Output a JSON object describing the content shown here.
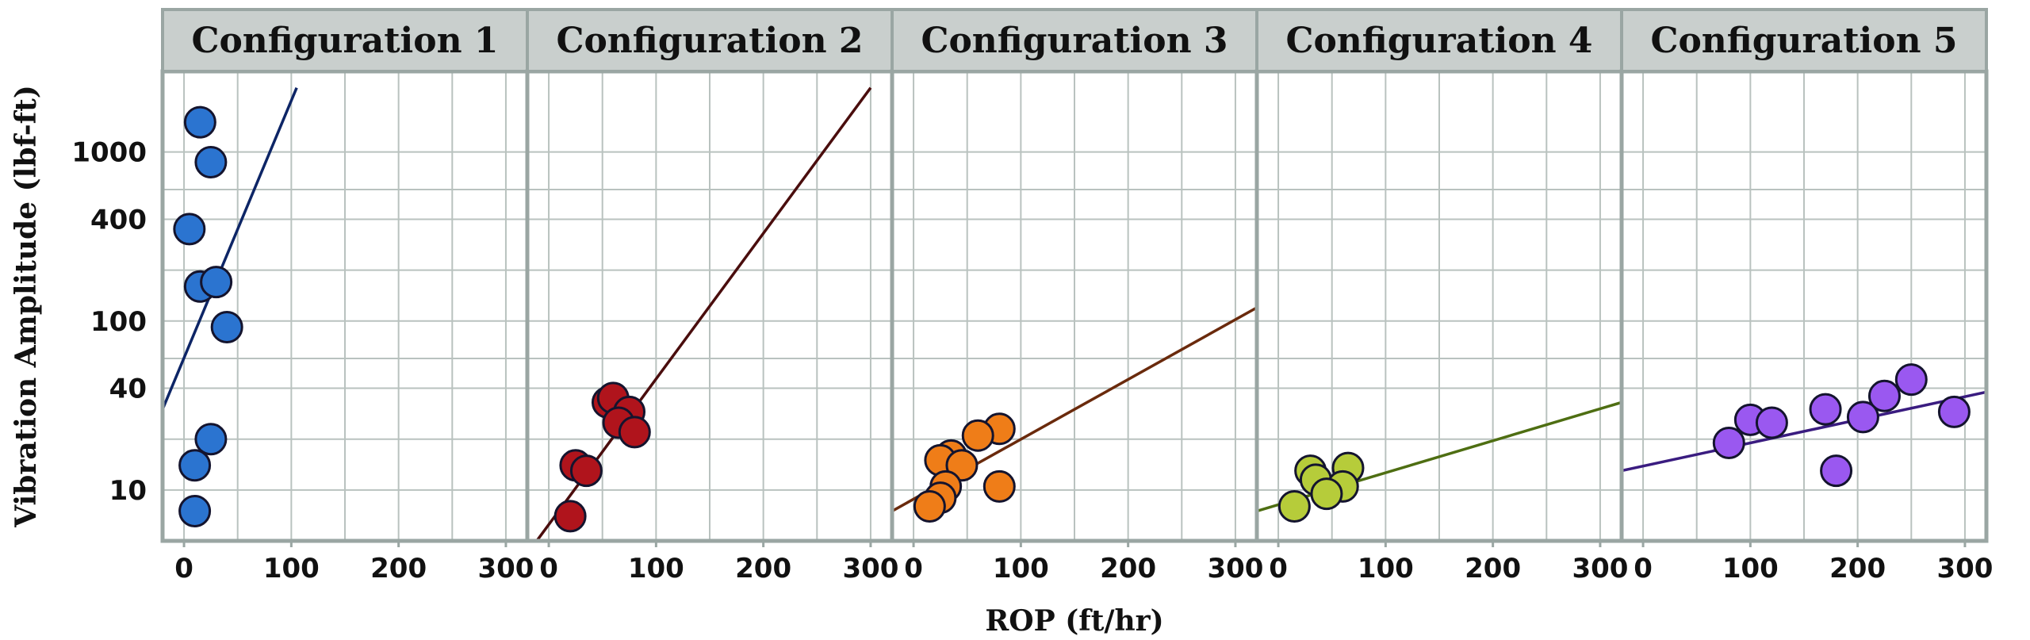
{
  "chart_data": {
    "type": "scatter",
    "faceted": true,
    "xlabel": "ROP (ft/hr)",
    "ylabel": "Vibration Amplitude (lbf-ft)",
    "y_scale": "log",
    "xlim": [
      -20,
      320
    ],
    "ylim": [
      5,
      3000
    ],
    "x_ticks": [
      0,
      100,
      200,
      300
    ],
    "x_tick_labels": [
      "0",
      "100",
      "200",
      "300"
    ],
    "y_ticks": [
      10,
      40,
      100,
      400,
      1000
    ],
    "y_tick_labels": [
      "10",
      "40",
      "100",
      "400",
      "1000"
    ],
    "y_minor_gridlines": [
      20,
      60,
      200,
      600
    ],
    "grid": true,
    "panels": [
      {
        "title": "Configuration 1",
        "color": "#2b74d0",
        "line_color": "#0d2566",
        "points": [
          [
            15,
            1500
          ],
          [
            25,
            870
          ],
          [
            5,
            350
          ],
          [
            15,
            160
          ],
          [
            30,
            170
          ],
          [
            40,
            92
          ],
          [
            25,
            20
          ],
          [
            10,
            14
          ],
          [
            10,
            7.5
          ]
        ],
        "fit_line": [
          [
            -20,
            30
          ],
          [
            105,
            2400
          ]
        ]
      },
      {
        "title": "Configuration 2",
        "color": "#b0141c",
        "line_color": "#4a0d0d",
        "points": [
          [
            55,
            33
          ],
          [
            60,
            35
          ],
          [
            75,
            29
          ],
          [
            65,
            25
          ],
          [
            80,
            22
          ],
          [
            25,
            14
          ],
          [
            35,
            13
          ],
          [
            20,
            7
          ]
        ],
        "fit_line": [
          [
            -20,
            4.2
          ],
          [
            300,
            2400
          ]
        ]
      },
      {
        "title": "Configuration 3",
        "color": "#ef7d18",
        "line_color": "#6a2a0c",
        "points": [
          [
            80,
            23
          ],
          [
            60,
            21
          ],
          [
            35,
            16
          ],
          [
            25,
            15
          ],
          [
            45,
            14
          ],
          [
            80,
            10.5
          ],
          [
            30,
            10.5
          ],
          [
            25,
            9
          ],
          [
            15,
            8
          ]
        ],
        "fit_line": [
          [
            -20,
            7.5
          ],
          [
            320,
            120
          ]
        ]
      },
      {
        "title": "Configuration 4",
        "color": "#b6cc3a",
        "line_color": "#4e6e12",
        "points": [
          [
            30,
            13
          ],
          [
            65,
            13.5
          ],
          [
            35,
            11.5
          ],
          [
            60,
            10.5
          ],
          [
            45,
            9.5
          ],
          [
            15,
            8
          ]
        ],
        "fit_line": [
          [
            -20,
            7.5
          ],
          [
            320,
            33
          ]
        ]
      },
      {
        "title": "Configuration 5",
        "color": "#9a58f0",
        "line_color": "#3a1c80",
        "points": [
          [
            250,
            45
          ],
          [
            225,
            36
          ],
          [
            170,
            30
          ],
          [
            290,
            29
          ],
          [
            100,
            26
          ],
          [
            120,
            25
          ],
          [
            205,
            27
          ],
          [
            80,
            19
          ],
          [
            180,
            13
          ]
        ],
        "fit_line": [
          [
            -20,
            13
          ],
          [
            320,
            38
          ]
        ]
      }
    ]
  }
}
